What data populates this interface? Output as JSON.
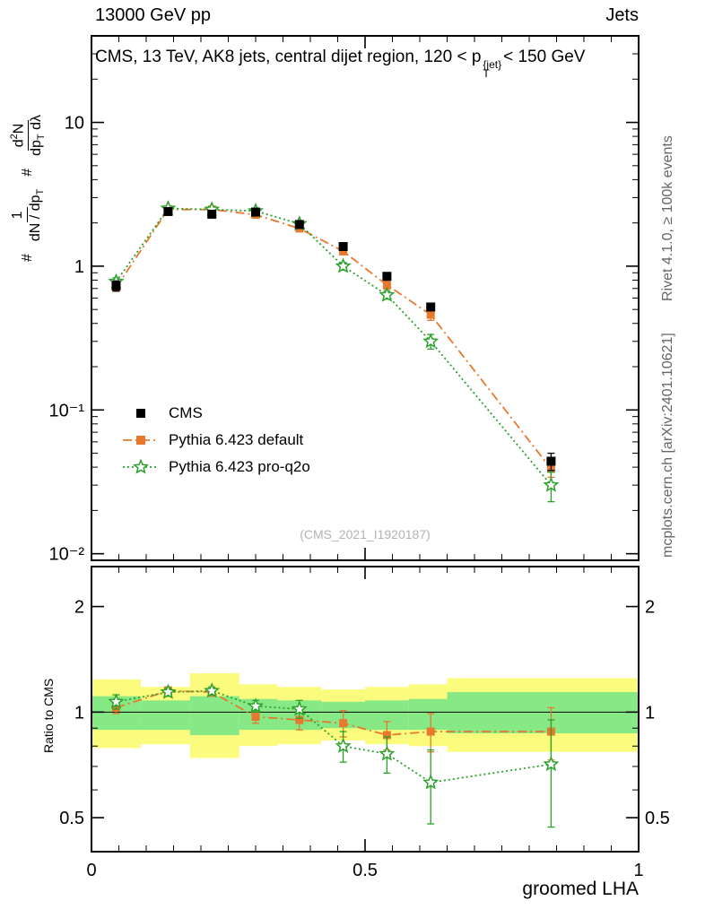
{
  "header": {
    "left": "13000 GeV pp",
    "right": "Jets"
  },
  "side_labels": {
    "top": "Rivet 4.1.0, ≥ 100k events",
    "bottom": "mcplots.cern.ch [arXiv:2401.10621]"
  },
  "title": {
    "pre": "CMS, 13 TeV, AK8 jets, central dijet region, 120 < p",
    "sup": "{jet}",
    "sub": "T",
    "post": "< 150 GeV"
  },
  "watermark": "(CMS_2021_I1920187)",
  "ratio_ylabel": "Ratio to CMS",
  "ylabel": {
    "hash": "#",
    "f1num": "1",
    "f1den": "dN / dp",
    "f1den_sub": "T",
    "f2num_a": "d",
    "f2num_sup": "2",
    "f2num_b": "N",
    "f2den_a": "dp",
    "f2den_sub": "T",
    "f2den_b": " dλ"
  },
  "colors": {
    "side_text": "#666666",
    "watermark": "#b3b3b3",
    "axis": "#000000"
  },
  "chart_data": {
    "type": "line",
    "title": "CMS, 13 TeV, AK8 jets, central dijet region, 120 < p_T^{jet} < 150 GeV",
    "xlabel": "groomed LHA",
    "ylabel": "# 1/(dN/dp_T) d²N/(dp_T dλ)",
    "ratio_label": "Ratio to CMS",
    "legend_position": "left-middle",
    "grid": false,
    "axes": {
      "x": {
        "lim": [
          0,
          1
        ],
        "major": [
          0,
          0.5,
          1
        ],
        "labels": [
          "0",
          "0.5",
          "1"
        ],
        "minor_step": 0.05
      },
      "y_main": {
        "scale": "log",
        "lim": [
          0.009,
          40
        ],
        "major": [
          10,
          1,
          0.1,
          0.01
        ],
        "labels": [
          "10",
          "1",
          "10⁻¹",
          "10⁻²"
        ]
      },
      "y_ratio": {
        "scale": "log",
        "lim": [
          0.4,
          2.6
        ],
        "major": [
          2,
          1,
          0.5
        ],
        "labels": [
          "2",
          "1",
          "0.5"
        ],
        "minor": [
          0.4,
          0.6,
          0.7,
          0.8,
          0.9
        ]
      }
    },
    "x": [
      0.045,
      0.14,
      0.22,
      0.3,
      0.38,
      0.46,
      0.54,
      0.62,
      0.84
    ],
    "series": [
      {
        "id": "cms",
        "label": "CMS",
        "color": "#000000",
        "marker": "square_filled",
        "line": "none",
        "y": [
          0.73,
          2.4,
          2.3,
          2.38,
          1.95,
          1.37,
          0.85,
          0.52,
          0.044
        ],
        "yerr": [
          0.06,
          0.07,
          0.07,
          0.07,
          0.06,
          0.06,
          0.04,
          0.03,
          0.006
        ]
      },
      {
        "id": "pythia-default",
        "label": "Pythia 6.423 default",
        "color": "#e8782d",
        "marker": "square_filled",
        "line": "dashdot",
        "y": [
          0.71,
          2.48,
          2.48,
          2.28,
          1.83,
          1.27,
          0.74,
          0.46,
          0.039
        ],
        "yerr": [
          0.04,
          0.06,
          0.06,
          0.06,
          0.06,
          0.07,
          0.05,
          0.04,
          0.005
        ],
        "ratio": [
          1.03,
          1.15,
          1.14,
          0.97,
          0.95,
          0.93,
          0.86,
          0.88,
          0.88
        ],
        "ratio_err": [
          0.04,
          0.03,
          0.03,
          0.04,
          0.06,
          0.08,
          0.08,
          0.11,
          0.15
        ]
      },
      {
        "id": "pythia-proq2o",
        "label": "Pythia 6.423 pro-q2o",
        "color": "#2aa22a",
        "marker": "star_open",
        "line": "dotted",
        "y": [
          0.78,
          2.52,
          2.48,
          2.42,
          1.97,
          1.0,
          0.63,
          0.3,
          0.03
        ],
        "yerr": [
          0.05,
          0.06,
          0.06,
          0.06,
          0.06,
          0.06,
          0.04,
          0.035,
          0.007
        ],
        "ratio": [
          1.07,
          1.14,
          1.15,
          1.04,
          1.02,
          0.8,
          0.76,
          0.63,
          0.71
        ],
        "ratio_err": [
          0.05,
          0.03,
          0.03,
          0.04,
          0.06,
          0.08,
          0.09,
          0.15,
          0.24
        ]
      }
    ],
    "ratio_ref_line": 1,
    "ratio_bands": {
      "edges": [
        0,
        0.09,
        0.18,
        0.27,
        0.34,
        0.42,
        0.5,
        0.58,
        0.65,
        1.0
      ],
      "yellow": [
        [
          0.79,
          1.24
        ],
        [
          0.81,
          1.18
        ],
        [
          0.74,
          1.29
        ],
        [
          0.8,
          1.2
        ],
        [
          0.81,
          1.18
        ],
        [
          0.83,
          1.16
        ],
        [
          0.81,
          1.18
        ],
        [
          0.8,
          1.2
        ],
        [
          0.77,
          1.25
        ]
      ],
      "green": [
        [
          0.89,
          1.11
        ],
        [
          0.89,
          1.08
        ],
        [
          0.86,
          1.11
        ],
        [
          0.89,
          1.09
        ],
        [
          0.89,
          1.08
        ],
        [
          0.9,
          1.07
        ],
        [
          0.89,
          1.08
        ],
        [
          0.89,
          1.09
        ],
        [
          0.87,
          1.14
        ]
      ],
      "yellow_color": "#fbfb7d",
      "green_color": "#86e986"
    }
  }
}
